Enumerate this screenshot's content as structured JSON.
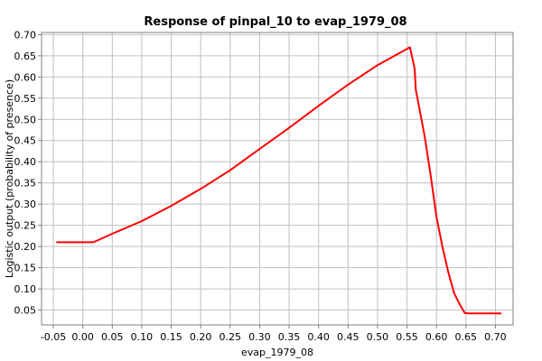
{
  "chart_data": {
    "type": "line",
    "title": "Response of pinpal_10 to evap_1979_08",
    "xlabel": "evap_1979_08",
    "ylabel": "Logistic output (probability of presence)",
    "xlim": [
      -0.07,
      0.73
    ],
    "ylim": [
      0.015,
      0.705
    ],
    "x_ticks": [
      "-0.05",
      "0.00",
      "0.05",
      "0.10",
      "0.15",
      "0.20",
      "0.25",
      "0.30",
      "0.35",
      "0.40",
      "0.45",
      "0.50",
      "0.55",
      "0.60",
      "0.65",
      "0.70"
    ],
    "y_ticks": [
      "0.05",
      "0.10",
      "0.15",
      "0.20",
      "0.25",
      "0.30",
      "0.35",
      "0.40",
      "0.45",
      "0.50",
      "0.55",
      "0.60",
      "0.65",
      "0.70"
    ],
    "grid": true,
    "series": [
      {
        "color": "#ff0000",
        "points": [
          [
            -0.045,
            0.21
          ],
          [
            0.018,
            0.21
          ],
          [
            0.05,
            0.23
          ],
          [
            0.1,
            0.26
          ],
          [
            0.15,
            0.296
          ],
          [
            0.2,
            0.336
          ],
          [
            0.25,
            0.38
          ],
          [
            0.3,
            0.43
          ],
          [
            0.35,
            0.48
          ],
          [
            0.4,
            0.532
          ],
          [
            0.45,
            0.582
          ],
          [
            0.5,
            0.628
          ],
          [
            0.555,
            0.67
          ],
          [
            0.563,
            0.62
          ],
          [
            0.565,
            0.57
          ],
          [
            0.58,
            0.46
          ],
          [
            0.59,
            0.37
          ],
          [
            0.6,
            0.27
          ],
          [
            0.61,
            0.2
          ],
          [
            0.62,
            0.14
          ],
          [
            0.63,
            0.09
          ],
          [
            0.64,
            0.062
          ],
          [
            0.648,
            0.043
          ],
          [
            0.655,
            0.042
          ],
          [
            0.71,
            0.042
          ]
        ]
      }
    ]
  }
}
